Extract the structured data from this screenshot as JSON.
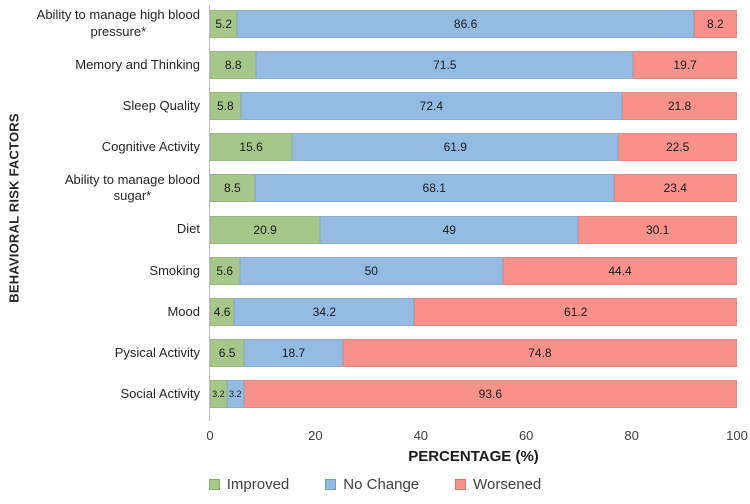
{
  "figure": {
    "background": "#ffffff",
    "axis_line_color": "#bfbfbf",
    "text_color": "#262626"
  },
  "chart_data": {
    "type": "bar",
    "orientation": "horizontal-stacked",
    "title": "",
    "xlabel": "PERCENTAGE (%)",
    "ylabel": "BEHAVIORAL RISK FACTORS",
    "xlim": [
      0,
      100
    ],
    "x_ticks": [
      0,
      20,
      40,
      60,
      80,
      100
    ],
    "grid": false,
    "legend_position": "bottom-center",
    "value_labels_shown": true,
    "categories": [
      "Ability to manage high blood\npressure*",
      "Memory and Thinking",
      "Sleep Quality",
      "Cognitive Activity",
      "Ability to manage blood\nsugar*",
      "Diet",
      "Smoking",
      "Mood",
      "Pysical Activity",
      "Social Activity"
    ],
    "series": [
      {
        "name": "Improved",
        "color": "#a5c88a",
        "border_color": "#86ac68",
        "values": [
          5.2,
          8.8,
          5.8,
          15.6,
          8.5,
          20.9,
          5.6,
          4.6,
          6.5,
          3.2
        ]
      },
      {
        "name": "No Change",
        "color": "#94bce3",
        "border_color": "#6f9fcc",
        "values": [
          86.6,
          71.5,
          72.4,
          61.9,
          68.1,
          49,
          50,
          34.2,
          18.7,
          3.2
        ]
      },
      {
        "name": "Worsened",
        "color": "#f8918a",
        "border_color": "#db756e",
        "values": [
          8.2,
          19.7,
          21.8,
          22.5,
          23.4,
          30.1,
          44.4,
          61.2,
          74.8,
          93.6
        ]
      }
    ]
  }
}
